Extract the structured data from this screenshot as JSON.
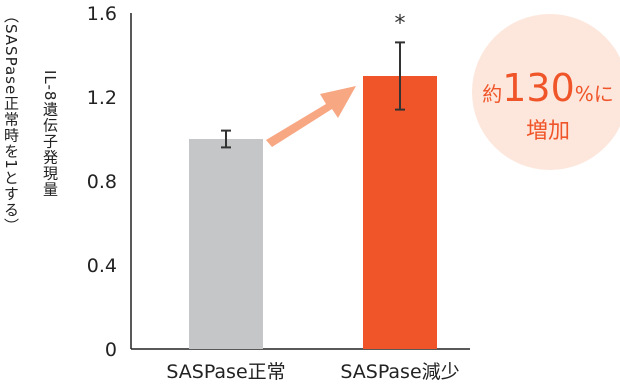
{
  "chart_data": {
    "type": "bar",
    "categories": [
      "SASPase正常",
      "SASPase減少"
    ],
    "values": [
      1.0,
      1.3
    ],
    "errors": [
      0.04,
      0.16
    ],
    "ylim": [
      0,
      1.6
    ],
    "yticks": [
      "0",
      "0.4",
      "0.8",
      "1.2",
      "1.6"
    ],
    "ylabel": "IL-8遺伝子発現量",
    "ylabel_note": "（SASPase正常時を1とする）",
    "bar_colors": [
      "#c5c6c8",
      "#f0552a"
    ],
    "significance_mark": "*",
    "annotation": {
      "prefix": "約",
      "number": "130",
      "suffix": "%に",
      "line2": "増加"
    },
    "arrow_color": "#f8a783",
    "bubble_color": "#fde7dc",
    "accent_color": "#f0552a"
  }
}
